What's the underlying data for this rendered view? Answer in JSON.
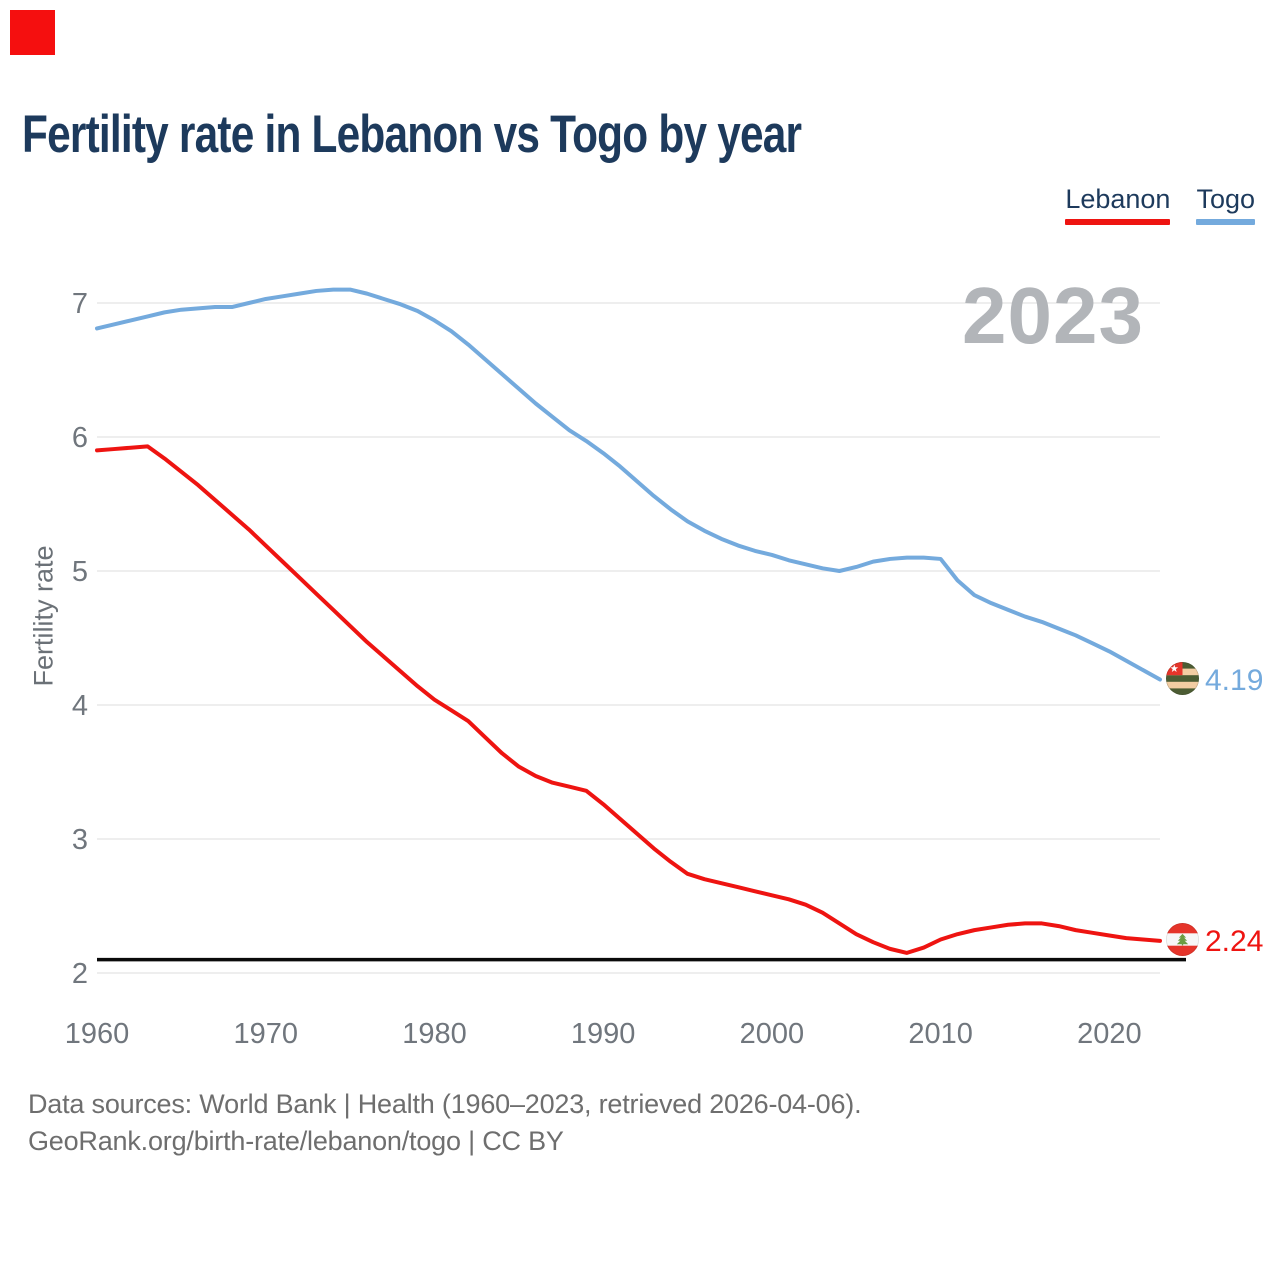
{
  "marker": {
    "color": "#f50f0f"
  },
  "title": "Fertility rate in Lebanon vs Togo by year",
  "legend": {
    "items": [
      {
        "label": "Lebanon",
        "color": "#ee1411"
      },
      {
        "label": "Togo",
        "color": "#74aadd"
      }
    ]
  },
  "watermark": "2023",
  "footer": {
    "line1": "Data sources: World Bank | Health (1960–2023, retrieved 2026-04-06).",
    "line2": "GeoRank.org/birth-rate/lebanon/togo | CC BY"
  },
  "chart_data": {
    "type": "line",
    "title": "Fertility rate in Lebanon vs Togo by year",
    "xlabel": "",
    "ylabel": "Fertility rate",
    "xlim": [
      1960,
      2023
    ],
    "ylim": [
      2,
      7.3
    ],
    "grid": "horizontal",
    "legend_position": "top-right",
    "xticks": [
      1960,
      1970,
      1980,
      1990,
      2000,
      2010,
      2020
    ],
    "yticks": [
      2,
      3,
      4,
      5,
      6,
      7
    ],
    "x": [
      1960,
      1961,
      1962,
      1963,
      1964,
      1965,
      1966,
      1967,
      1968,
      1969,
      1970,
      1971,
      1972,
      1973,
      1974,
      1975,
      1976,
      1977,
      1978,
      1979,
      1980,
      1981,
      1982,
      1983,
      1984,
      1985,
      1986,
      1987,
      1988,
      1989,
      1990,
      1991,
      1992,
      1993,
      1994,
      1995,
      1996,
      1997,
      1998,
      1999,
      2000,
      2001,
      2002,
      2003,
      2004,
      2005,
      2006,
      2007,
      2008,
      2009,
      2010,
      2011,
      2012,
      2013,
      2014,
      2015,
      2016,
      2017,
      2018,
      2019,
      2020,
      2021,
      2022,
      2023
    ],
    "series": [
      {
        "name": "Togo",
        "color": "#74aadd",
        "values": [
          6.81,
          6.84,
          6.87,
          6.9,
          6.93,
          6.95,
          6.96,
          6.97,
          6.97,
          7.0,
          7.03,
          7.05,
          7.07,
          7.09,
          7.1,
          7.1,
          7.07,
          7.03,
          6.99,
          6.94,
          6.87,
          6.79,
          6.69,
          6.58,
          6.47,
          6.36,
          6.25,
          6.15,
          6.05,
          5.97,
          5.88,
          5.78,
          5.67,
          5.56,
          5.46,
          5.37,
          5.3,
          5.24,
          5.19,
          5.15,
          5.12,
          5.08,
          5.05,
          5.02,
          5.0,
          5.03,
          5.07,
          5.09,
          5.1,
          5.1,
          5.09,
          4.93,
          4.82,
          4.76,
          4.71,
          4.66,
          4.62,
          4.57,
          4.52,
          4.46,
          4.4,
          4.33,
          4.26,
          4.19
        ]
      },
      {
        "name": "Lebanon",
        "color": "#ee1411",
        "values": [
          5.9,
          5.91,
          5.92,
          5.93,
          5.84,
          5.74,
          5.64,
          5.53,
          5.42,
          5.31,
          5.19,
          5.07,
          4.95,
          4.83,
          4.71,
          4.59,
          4.47,
          4.36,
          4.25,
          4.14,
          4.04,
          3.96,
          3.88,
          3.76,
          3.64,
          3.54,
          3.47,
          3.42,
          3.39,
          3.36,
          3.26,
          3.15,
          3.04,
          2.93,
          2.83,
          2.74,
          2.7,
          2.67,
          2.64,
          2.61,
          2.58,
          2.55,
          2.51,
          2.45,
          2.37,
          2.29,
          2.23,
          2.18,
          2.15,
          2.19,
          2.25,
          2.29,
          2.32,
          2.34,
          2.36,
          2.37,
          2.37,
          2.35,
          2.32,
          2.3,
          2.28,
          2.26,
          2.25,
          2.24
        ]
      }
    ],
    "reference_line": {
      "value": 2.1,
      "color": "#0a0a0a"
    },
    "end_labels": [
      {
        "series": "Togo",
        "value": "4.19",
        "flag": "togo"
      },
      {
        "series": "Lebanon",
        "value": "2.24",
        "flag": "lebanon"
      }
    ]
  }
}
